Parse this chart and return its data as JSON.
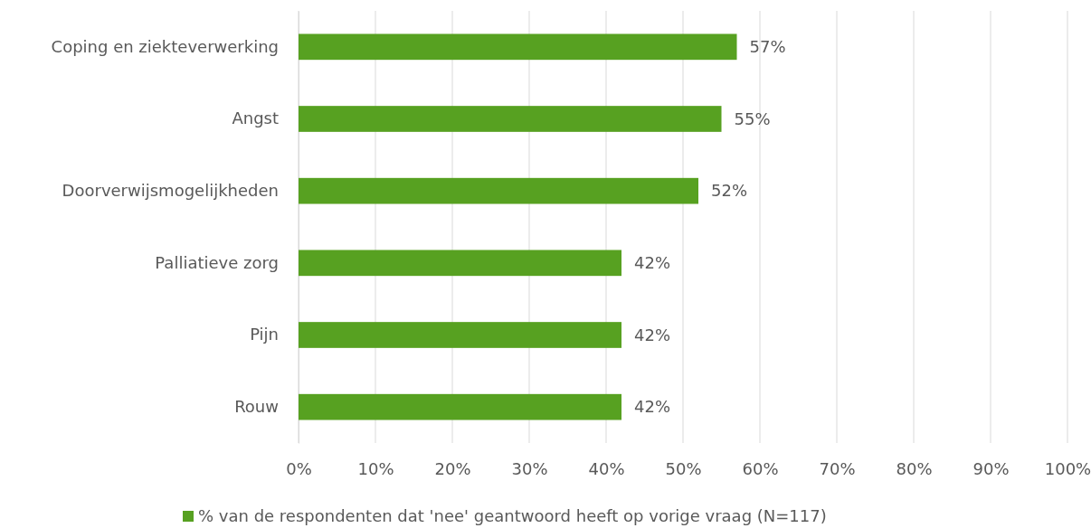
{
  "chart_data": {
    "type": "bar",
    "orientation": "horizontal",
    "categories": [
      "Coping en ziekteverwerking",
      "Angst",
      "Doorverwijsmogelijkheden",
      "Palliatieve zorg",
      "Pijn",
      "Rouw"
    ],
    "series": [
      {
        "name": "% van de respondenten dat 'nee' geantwoord heeft op vorige vraag (N=117)",
        "color": "#57a121",
        "values": [
          57,
          55,
          52,
          42,
          42,
          42
        ],
        "value_labels": [
          "57%",
          "55%",
          "52%",
          "42%",
          "42%",
          "42%"
        ]
      }
    ],
    "xlim": [
      0,
      100
    ],
    "xticks": [
      {
        "value": 0,
        "label": "0%"
      },
      {
        "value": 10,
        "label": "10%"
      },
      {
        "value": 20,
        "label": "20%"
      },
      {
        "value": 30,
        "label": "30%"
      },
      {
        "value": 40,
        "label": "40%"
      },
      {
        "value": 50,
        "label": "50%"
      },
      {
        "value": 60,
        "label": "60%"
      },
      {
        "value": 70,
        "label": "70%"
      },
      {
        "value": 80,
        "label": "80%"
      },
      {
        "value": 90,
        "label": "90%"
      },
      {
        "value": 100,
        "label": "100%"
      }
    ],
    "grid": "x",
    "legend": "bottom"
  }
}
